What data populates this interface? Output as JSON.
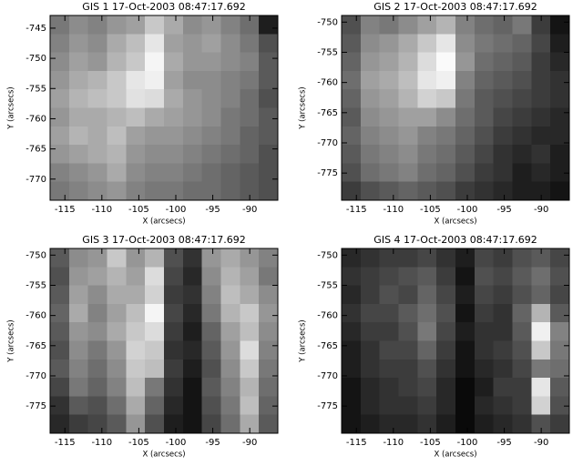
{
  "chart_data": [
    {
      "type": "heatmap",
      "title": "GIS 1 17-Oct-2003 08:47:17.692",
      "x_label": "X (arcsecs)",
      "y_label": "Y (arcsecs)",
      "cmap": "gray",
      "clim": [
        0,
        255
      ],
      "xlim": [
        -117,
        -86.2
      ],
      "ylim": [
        -773.5,
        -742.9
      ],
      "xticks": [
        -115,
        -110,
        -105,
        -100,
        -95,
        -90
      ],
      "yticks": [
        -770,
        -765,
        -760,
        -755,
        -750,
        -745
      ],
      "values": [
        [
          120,
          140,
          130,
          150,
          160,
          200,
          170,
          140,
          150,
          130,
          110,
          30
        ],
        [
          130,
          150,
          140,
          170,
          190,
          230,
          160,
          150,
          160,
          140,
          120,
          80
        ],
        [
          140,
          160,
          150,
          180,
          200,
          245,
          170,
          150,
          150,
          140,
          130,
          90
        ],
        [
          150,
          170,
          180,
          200,
          230,
          240,
          160,
          140,
          140,
          130,
          120,
          90
        ],
        [
          160,
          180,
          190,
          200,
          225,
          220,
          170,
          150,
          140,
          130,
          110,
          80
        ],
        [
          150,
          170,
          170,
          180,
          190,
          170,
          160,
          150,
          140,
          120,
          110,
          90
        ],
        [
          160,
          180,
          170,
          190,
          160,
          150,
          150,
          140,
          130,
          120,
          100,
          90
        ],
        [
          150,
          160,
          170,
          180,
          150,
          140,
          140,
          130,
          120,
          110,
          100,
          80
        ],
        [
          130,
          140,
          150,
          170,
          140,
          130,
          130,
          120,
          110,
          100,
          90,
          80
        ],
        [
          120,
          130,
          140,
          150,
          130,
          120,
          120,
          110,
          110,
          100,
          90,
          80
        ]
      ]
    },
    {
      "type": "heatmap",
      "title": "GIS 2 17-Oct-2003 08:47:17.692",
      "x_label": "X (arcsecs)",
      "y_label": "Y (arcsecs)",
      "cmap": "gray",
      "clim": [
        0,
        255
      ],
      "xlim": [
        -117,
        -86.2
      ],
      "ylim": [
        -779.5,
        -748.9
      ],
      "xticks": [
        -115,
        -110,
        -105,
        -100,
        -95,
        -90
      ],
      "yticks": [
        -775,
        -770,
        -765,
        -760,
        -755,
        -750
      ],
      "values": [
        [
          80,
          130,
          120,
          140,
          160,
          180,
          130,
          110,
          100,
          120,
          60,
          20
        ],
        [
          90,
          140,
          150,
          170,
          200,
          230,
          140,
          120,
          110,
          100,
          70,
          30
        ],
        [
          100,
          150,
          160,
          180,
          220,
          250,
          150,
          110,
          100,
          90,
          60,
          40
        ],
        [
          110,
          160,
          170,
          190,
          230,
          240,
          130,
          100,
          90,
          80,
          60,
          50
        ],
        [
          100,
          150,
          160,
          180,
          210,
          200,
          120,
          90,
          80,
          70,
          60,
          50
        ],
        [
          90,
          140,
          150,
          160,
          160,
          140,
          110,
          90,
          70,
          60,
          50,
          40
        ],
        [
          100,
          130,
          140,
          150,
          130,
          120,
          100,
          80,
          60,
          50,
          40,
          40
        ],
        [
          90,
          120,
          130,
          140,
          120,
          110,
          90,
          70,
          50,
          40,
          50,
          30
        ],
        [
          80,
          110,
          120,
          130,
          110,
          100,
          80,
          60,
          50,
          30,
          40,
          30
        ],
        [
          60,
          80,
          90,
          100,
          90,
          80,
          60,
          50,
          40,
          30,
          30,
          20
        ]
      ]
    },
    {
      "type": "heatmap",
      "title": "GIS 3 17-Oct-2003 08:47:17.692",
      "x_label": "X (arcsecs)",
      "y_label": "Y (arcsecs)",
      "cmap": "gray",
      "clim": [
        0,
        255
      ],
      "xlim": [
        -117,
        -86.2
      ],
      "ylim": [
        -779.5,
        -748.9
      ],
      "xticks": [
        -115,
        -110,
        -105,
        -100,
        -95,
        -90
      ],
      "yticks": [
        -775,
        -770,
        -765,
        -760,
        -755,
        -750
      ],
      "values": [
        [
          90,
          140,
          150,
          200,
          150,
          180,
          80,
          50,
          150,
          170,
          150,
          130
        ],
        [
          80,
          150,
          160,
          180,
          160,
          220,
          70,
          40,
          140,
          180,
          160,
          120
        ],
        [
          90,
          160,
          140,
          170,
          170,
          210,
          60,
          50,
          130,
          190,
          170,
          140
        ],
        [
          100,
          170,
          130,
          160,
          190,
          245,
          70,
          40,
          120,
          180,
          200,
          150
        ],
        [
          90,
          150,
          140,
          170,
          200,
          220,
          60,
          30,
          100,
          160,
          190,
          140
        ],
        [
          80,
          140,
          120,
          150,
          210,
          200,
          50,
          40,
          90,
          150,
          220,
          130
        ],
        [
          90,
          130,
          110,
          140,
          200,
          190,
          60,
          30,
          80,
          140,
          200,
          120
        ],
        [
          70,
          120,
          100,
          130,
          190,
          120,
          50,
          20,
          90,
          130,
          180,
          110
        ],
        [
          50,
          90,
          80,
          110,
          170,
          100,
          40,
          20,
          80,
          120,
          190,
          100
        ],
        [
          40,
          60,
          70,
          90,
          150,
          80,
          30,
          20,
          70,
          110,
          170,
          90
        ]
      ]
    },
    {
      "type": "heatmap",
      "title": "GIS 4 17-Oct-2003 08:47:17.692",
      "x_label": "X (arcsecs)",
      "y_label": "Y (arcsecs)",
      "cmap": "gray",
      "clim": [
        0,
        255
      ],
      "xlim": [
        -117,
        -86.2
      ],
      "ylim": [
        -779.5,
        -748.9
      ],
      "xticks": [
        -115,
        -110,
        -105,
        -100,
        -95,
        -90
      ],
      "yticks": [
        -775,
        -770,
        -765,
        -760,
        -755,
        -750
      ],
      "values": [
        [
          40,
          50,
          60,
          60,
          70,
          50,
          30,
          70,
          60,
          80,
          90,
          70
        ],
        [
          50,
          60,
          70,
          80,
          90,
          60,
          20,
          80,
          70,
          90,
          110,
          80
        ],
        [
          40,
          60,
          80,
          70,
          100,
          70,
          30,
          70,
          60,
          80,
          100,
          70
        ],
        [
          50,
          70,
          70,
          90,
          110,
          80,
          20,
          60,
          50,
          100,
          180,
          90
        ],
        [
          40,
          60,
          60,
          80,
          120,
          70,
          30,
          50,
          50,
          90,
          240,
          130
        ],
        [
          30,
          50,
          70,
          70,
          100,
          60,
          20,
          50,
          60,
          80,
          200,
          120
        ],
        [
          30,
          50,
          60,
          60,
          80,
          50,
          20,
          40,
          50,
          70,
          120,
          110
        ],
        [
          20,
          40,
          50,
          60,
          70,
          40,
          10,
          30,
          60,
          60,
          230,
          90
        ],
        [
          20,
          40,
          50,
          50,
          60,
          40,
          10,
          40,
          50,
          60,
          210,
          80
        ],
        [
          20,
          30,
          40,
          40,
          50,
          30,
          10,
          30,
          40,
          50,
          80,
          60
        ]
      ]
    }
  ]
}
